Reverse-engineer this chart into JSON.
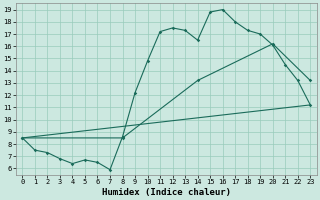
{
  "xlabel": "Humidex (Indice chaleur)",
  "bg_color": "#cce8e0",
  "grid_color": "#99ccbb",
  "line_color": "#1a6b5a",
  "xlim": [
    -0.5,
    23.5
  ],
  "ylim": [
    5.5,
    19.5
  ],
  "xticks": [
    0,
    1,
    2,
    3,
    4,
    5,
    6,
    7,
    8,
    9,
    10,
    11,
    12,
    13,
    14,
    15,
    16,
    17,
    18,
    19,
    20,
    21,
    22,
    23
  ],
  "yticks": [
    6,
    7,
    8,
    9,
    10,
    11,
    12,
    13,
    14,
    15,
    16,
    17,
    18,
    19
  ],
  "line1_x": [
    0,
    1,
    2,
    3,
    4,
    5,
    6,
    7,
    8,
    9,
    10,
    11,
    12,
    13,
    14,
    15,
    16,
    17,
    18,
    19,
    20,
    21,
    22,
    23
  ],
  "line1_y": [
    8.5,
    7.5,
    7.3,
    6.8,
    6.4,
    6.7,
    6.5,
    5.9,
    8.6,
    12.2,
    14.8,
    17.2,
    17.5,
    17.3,
    16.5,
    18.8,
    19.0,
    18.0,
    17.3,
    17.0,
    16.1,
    14.5,
    13.2,
    11.2
  ],
  "line2_x": [
    0,
    23
  ],
  "line2_y": [
    8.5,
    11.2
  ],
  "line3_x": [
    0,
    8,
    14,
    20,
    23
  ],
  "line3_y": [
    8.5,
    8.5,
    13.2,
    16.2,
    13.2
  ],
  "tick_fontsize": 5,
  "xlabel_fontsize": 6.5
}
